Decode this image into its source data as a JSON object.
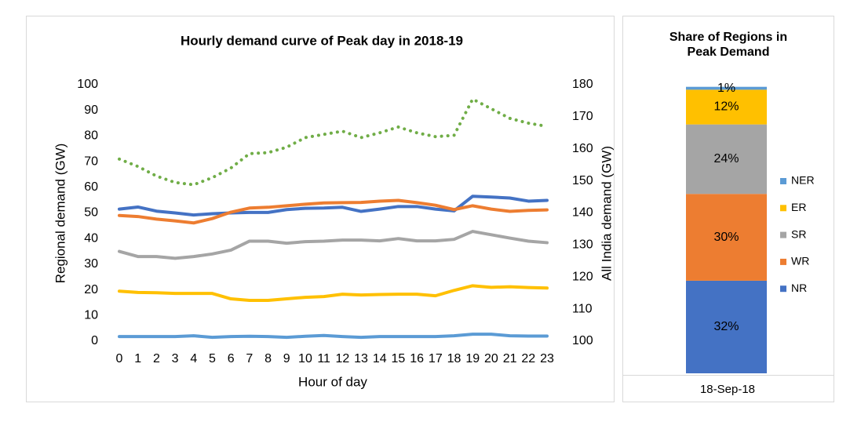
{
  "chart_data": [
    {
      "type": "line",
      "title": "Hourly demand curve of Peak day in 2018-19",
      "x_label": "Hour of day",
      "y_label": "Regional demand (GW)",
      "y2_label": "All India demand (GW)",
      "x": [
        0,
        1,
        2,
        3,
        4,
        5,
        6,
        7,
        8,
        9,
        10,
        11,
        12,
        13,
        14,
        15,
        16,
        17,
        18,
        19,
        20,
        21,
        22,
        23
      ],
      "xlim": [
        0,
        23
      ],
      "ylim": [
        0,
        100
      ],
      "yticks": [
        0,
        10,
        20,
        30,
        40,
        50,
        60,
        70,
        80,
        90,
        100
      ],
      "y2lim": [
        100,
        180
      ],
      "y2ticks": [
        100,
        110,
        120,
        130,
        140,
        150,
        160,
        170,
        180
      ],
      "grid": false,
      "series": [
        {
          "color": "#4472c4",
          "values": [
            51.5,
            52.3,
            50.7,
            50,
            49.2,
            49.7,
            50,
            50.2,
            50.2,
            51.3,
            51.8,
            51.9,
            52.2,
            50.6,
            51.5,
            52.5,
            52.5,
            51.5,
            50.8,
            56.5,
            56.2,
            55.8,
            54.6,
            54.9
          ]
        },
        {
          "color": "#ed7d31",
          "values": [
            49,
            48.6,
            47.6,
            46.9,
            46.1,
            47.8,
            50.3,
            51.9,
            52.2,
            52.8,
            53.4,
            53.9,
            54,
            54.1,
            54.6,
            54.9,
            54,
            53,
            51.3,
            52.8,
            51.5,
            50.6,
            51,
            51.2
          ]
        },
        {
          "color": "#a5a5a5",
          "values": [
            35,
            33,
            33,
            32.3,
            33,
            34,
            35.5,
            39,
            39,
            38.2,
            38.8,
            39,
            39.4,
            39.4,
            39.1,
            40,
            39.1,
            39.1,
            39.7,
            42.8,
            41.5,
            40.2,
            39,
            38.4
          ]
        },
        {
          "color": "#ffc000",
          "values": [
            19.5,
            19,
            18.9,
            18.6,
            18.6,
            18.6,
            16.5,
            15.9,
            15.9,
            16.5,
            17.1,
            17.4,
            18.3,
            18,
            18.2,
            18.3,
            18.3,
            17.7,
            19.8,
            21.6,
            21,
            21.2,
            20.9,
            20.7
          ]
        },
        {
          "color": "#5b9bd5",
          "values": [
            1.8,
            1.8,
            1.8,
            1.8,
            2.1,
            1.5,
            1.8,
            1.9,
            1.8,
            1.5,
            1.9,
            2.2,
            1.8,
            1.5,
            1.8,
            1.8,
            1.8,
            1.8,
            2.1,
            2.7,
            2.7,
            2.1,
            2,
            2
          ]
        },
        {
          "color": "#70ad47",
          "axis": "y2",
          "dashed": true,
          "values": [
            156.8,
            154.5,
            151.5,
            149.5,
            148.8,
            151,
            154,
            158.5,
            158.8,
            160.5,
            163.5,
            164.5,
            165.5,
            163.5,
            165,
            166.8,
            165,
            163.8,
            164.2,
            175.5,
            172.5,
            169.5,
            168,
            167
          ]
        }
      ]
    },
    {
      "type": "stacked_bar",
      "title": "Share of Regions in Peak Demand",
      "categories": [
        "18-Sep-18"
      ],
      "ylim": [
        0,
        100
      ],
      "legend": "right",
      "series": [
        {
          "name": "NR",
          "color": "#4472c4",
          "values": [
            32
          ],
          "value_labels": [
            "32%"
          ]
        },
        {
          "name": "WR",
          "color": "#ed7d31",
          "values": [
            30
          ],
          "value_labels": [
            "30%"
          ]
        },
        {
          "name": "SR",
          "color": "#a5a5a5",
          "values": [
            24
          ],
          "value_labels": [
            "24%"
          ]
        },
        {
          "name": "ER",
          "color": "#ffc000",
          "values": [
            12
          ],
          "value_labels": [
            "12%"
          ]
        },
        {
          "name": "NER",
          "color": "#5b9bd5",
          "values": [
            1
          ],
          "value_labels": [
            "1%"
          ]
        }
      ]
    }
  ]
}
